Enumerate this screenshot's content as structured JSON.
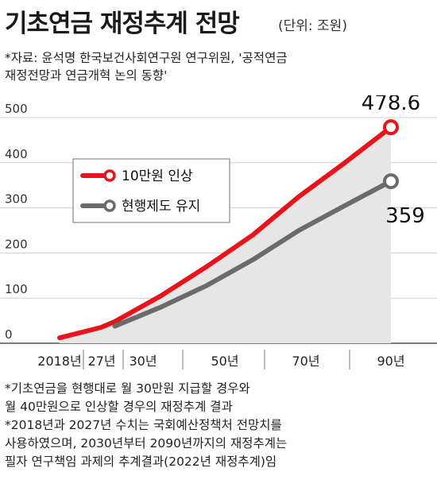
{
  "header": {
    "title": "기초연금 재정추계 전망",
    "unit": "(단위: 조원)"
  },
  "source": {
    "line1": "*자료: 윤석명 한국보건사회연구원 연구위원, '공적연금",
    "line2": "재정전망과 연금개혁 논의 동향'"
  },
  "chart_data": {
    "type": "line",
    "x": [
      "2018년",
      "27년",
      "30년",
      "50년",
      "70년",
      "90년"
    ],
    "ylim": [
      0,
      500
    ],
    "yticks": [
      "0",
      "100",
      "200",
      "300",
      "400",
      "500"
    ],
    "grid": true,
    "legend_position": "top-left",
    "series": [
      {
        "name": "10만원 인상",
        "color": "#e8141b",
        "points": [
          [
            2018,
            12
          ],
          [
            2027,
            35
          ],
          [
            2030,
            48
          ],
          [
            2040,
            105
          ],
          [
            2050,
            170
          ],
          [
            2060,
            240
          ],
          [
            2070,
            325
          ],
          [
            2080,
            400
          ],
          [
            2090,
            478.6
          ]
        ],
        "end_label": "478.6"
      },
      {
        "name": "현행제도 유지",
        "color": "#6b6b6b",
        "points": [
          [
            2030,
            38
          ],
          [
            2040,
            80
          ],
          [
            2050,
            128
          ],
          [
            2060,
            185
          ],
          [
            2070,
            250
          ],
          [
            2080,
            305
          ],
          [
            2090,
            359
          ]
        ],
        "end_label": "359"
      }
    ]
  },
  "notes": {
    "line1": "*기초연금을 현행대로 월 30만원 지급할 경우와",
    "line2": " 월 40만원으로 인상할 경우의 재정추계 결과",
    "line3": "*2018년과 2027년 수치는 국회예산정책처 전망치를",
    "line4": " 사용하였으며, 2030년부터 2090년까지의 재정추계는",
    "line5": " 필자 연구책임 과제의 추계결과(2022년 재정추계)임"
  }
}
